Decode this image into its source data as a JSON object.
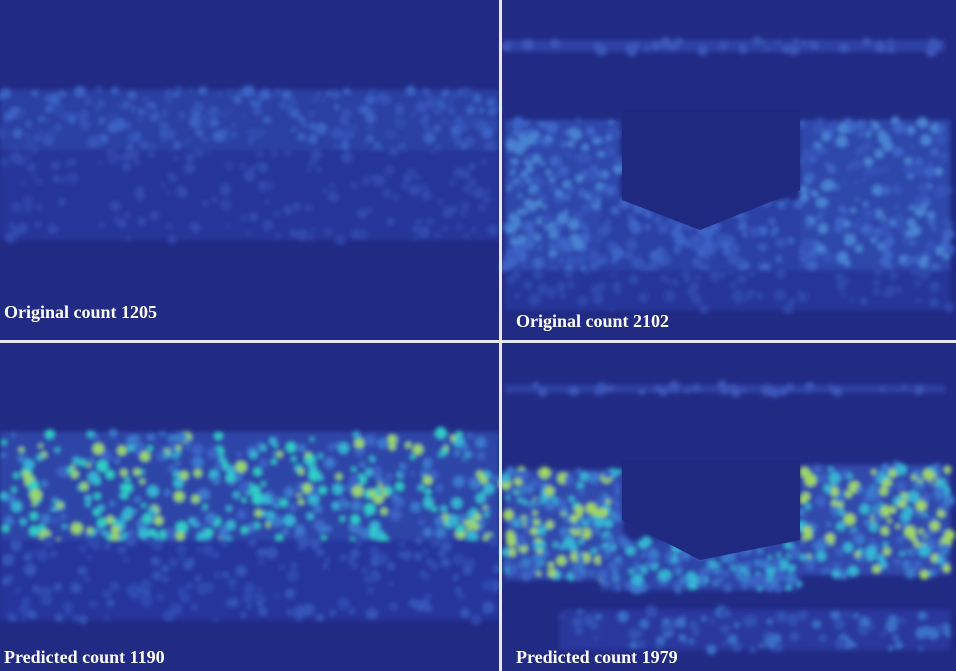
{
  "panels": [
    {
      "label": "Original count 1205"
    },
    {
      "label": "Original count 2102"
    },
    {
      "label": "Predicted count 1190"
    },
    {
      "label": "Predicted count 1979"
    }
  ]
}
